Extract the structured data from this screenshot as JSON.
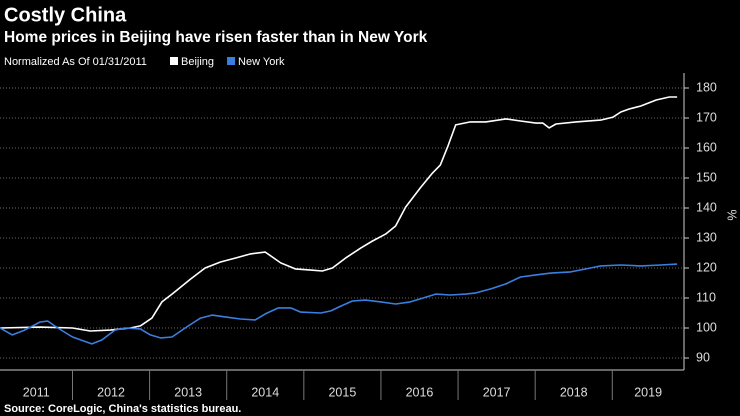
{
  "chart_data": {
    "type": "line",
    "title": "Costly China",
    "subtitle": "Home prices in Beijing have risen faster than in New York",
    "note": "Normalized As Of 01/31/2011",
    "y_axis_label": "%",
    "source": "Source: CoreLogic, China's statistics bureau.",
    "xlim": [
      2011.06,
      2019.93
    ],
    "xticks": [
      2011,
      2012,
      2013,
      2014,
      2015,
      2016,
      2017,
      2018,
      2019
    ],
    "ylim": [
      86,
      185
    ],
    "yticks": [
      90,
      100,
      110,
      120,
      130,
      140,
      150,
      160,
      170,
      180
    ],
    "grid": true,
    "series": [
      {
        "name": "Beijing",
        "color": "#ffffff",
        "x": [
          2011.06,
          2011.58,
          2012.0,
          2012.23,
          2012.49,
          2012.75,
          2012.88,
          2013.03,
          2013.16,
          2013.29,
          2013.53,
          2013.72,
          2013.92,
          2014.11,
          2014.31,
          2014.5,
          2014.7,
          2014.89,
          2015.09,
          2015.24,
          2015.37,
          2015.54,
          2015.74,
          2015.89,
          2016.06,
          2016.19,
          2016.32,
          2016.51,
          2016.67,
          2016.77,
          2016.87,
          2016.97,
          2017.16,
          2017.36,
          2017.62,
          2017.81,
          2018.01,
          2018.1,
          2018.18,
          2018.27,
          2018.53,
          2018.85,
          2019.01,
          2019.11,
          2019.22,
          2019.37,
          2019.57,
          2019.74,
          2019.84
        ],
        "values": [
          100,
          100.3,
          100,
          99,
          99.3,
          100,
          100.7,
          103.3,
          108.7,
          111.3,
          116.3,
          120,
          122,
          123.3,
          124.7,
          125.3,
          121.7,
          119.7,
          119.3,
          119,
          120,
          123.3,
          126.7,
          129,
          131.3,
          134,
          140.3,
          146.7,
          151.7,
          154.3,
          160.7,
          167.7,
          168.7,
          168.7,
          169.7,
          169,
          168.3,
          168.3,
          166.7,
          168,
          168.7,
          169.3,
          170.3,
          172,
          173,
          174,
          176,
          177,
          177
        ]
      },
      {
        "name": "New York",
        "color": "#3a7fe0",
        "x": [
          2011.06,
          2011.22,
          2011.38,
          2011.58,
          2011.68,
          2011.81,
          2012.0,
          2012.25,
          2012.38,
          2012.55,
          2012.68,
          2012.88,
          2013.01,
          2013.14,
          2013.29,
          2013.46,
          2013.66,
          2013.81,
          2013.98,
          2014.18,
          2014.37,
          2014.5,
          2014.67,
          2014.83,
          2014.96,
          2015.22,
          2015.35,
          2015.48,
          2015.63,
          2015.8,
          2016.0,
          2016.19,
          2016.38,
          2016.51,
          2016.71,
          2016.9,
          2017.1,
          2017.23,
          2017.42,
          2017.62,
          2017.81,
          2018.01,
          2018.2,
          2018.46,
          2018.66,
          2018.85,
          2019.11,
          2019.37,
          2019.63,
          2019.84
        ],
        "values": [
          100,
          97.7,
          99.3,
          102,
          102.3,
          100,
          97,
          94.7,
          96,
          99.3,
          100,
          99.7,
          97.7,
          96.7,
          97,
          100,
          103.3,
          104.3,
          103.7,
          103,
          102.7,
          104.7,
          106.7,
          106.7,
          105.3,
          105,
          105.7,
          107.3,
          109,
          109.3,
          108.7,
          108,
          108.7,
          109.7,
          111.3,
          111,
          111.3,
          111.7,
          113,
          114.7,
          117,
          117.7,
          118.3,
          118.7,
          119.7,
          120.7,
          121,
          120.7,
          121,
          121.3
        ]
      }
    ]
  }
}
